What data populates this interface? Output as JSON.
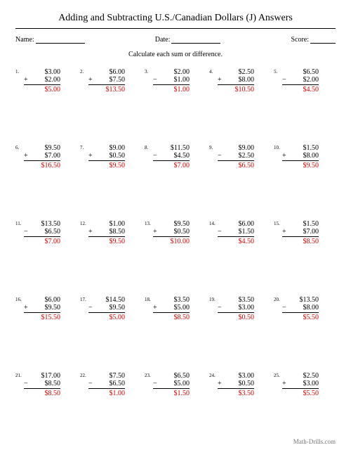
{
  "title": "Adding and Subtracting U.S./Canadian Dollars (J) Answers",
  "labels": {
    "name": "Name:",
    "date": "Date:",
    "score": "Score:"
  },
  "instruction": "Calculate each sum or difference.",
  "footer": "Math-Drills.com",
  "colors": {
    "answer": "#d00000",
    "text": "#000000"
  },
  "problems": [
    {
      "n": "1.",
      "a": "$3.00",
      "op": "+",
      "b": "$2.00",
      "ans": "$5.00"
    },
    {
      "n": "2.",
      "a": "$6.00",
      "op": "+",
      "b": "$7.50",
      "ans": "$13.50"
    },
    {
      "n": "3.",
      "a": "$2.00",
      "op": "−",
      "b": "$1.00",
      "ans": "$1.00"
    },
    {
      "n": "4.",
      "a": "$2.50",
      "op": "+",
      "b": "$8.00",
      "ans": "$10.50"
    },
    {
      "n": "5.",
      "a": "$6.50",
      "op": "−",
      "b": "$2.00",
      "ans": "$4.50"
    },
    {
      "n": "6.",
      "a": "$9.50",
      "op": "+",
      "b": "$7.00",
      "ans": "$16.50"
    },
    {
      "n": "7.",
      "a": "$9.00",
      "op": "+",
      "b": "$0.50",
      "ans": "$9.50"
    },
    {
      "n": "8.",
      "a": "$11.50",
      "op": "−",
      "b": "$4.50",
      "ans": "$7.00"
    },
    {
      "n": "9.",
      "a": "$9.00",
      "op": "−",
      "b": "$2.50",
      "ans": "$6.50"
    },
    {
      "n": "10.",
      "a": "$1.50",
      "op": "+",
      "b": "$8.00",
      "ans": "$9.50"
    },
    {
      "n": "11.",
      "a": "$13.50",
      "op": "−",
      "b": "$6.50",
      "ans": "$7.00"
    },
    {
      "n": "12.",
      "a": "$1.00",
      "op": "+",
      "b": "$8.50",
      "ans": "$9.50"
    },
    {
      "n": "13.",
      "a": "$9.50",
      "op": "+",
      "b": "$0.50",
      "ans": "$10.00"
    },
    {
      "n": "14.",
      "a": "$6.00",
      "op": "−",
      "b": "$1.50",
      "ans": "$4.50"
    },
    {
      "n": "15.",
      "a": "$1.50",
      "op": "+",
      "b": "$7.00",
      "ans": "$8.50"
    },
    {
      "n": "16.",
      "a": "$6.00",
      "op": "+",
      "b": "$9.50",
      "ans": "$15.50"
    },
    {
      "n": "17.",
      "a": "$14.50",
      "op": "−",
      "b": "$9.50",
      "ans": "$5.00"
    },
    {
      "n": "18.",
      "a": "$3.50",
      "op": "+",
      "b": "$5.00",
      "ans": "$8.50"
    },
    {
      "n": "19.",
      "a": "$3.50",
      "op": "−",
      "b": "$3.00",
      "ans": "$0.50"
    },
    {
      "n": "20.",
      "a": "$13.50",
      "op": "−",
      "b": "$8.00",
      "ans": "$5.50"
    },
    {
      "n": "21.",
      "a": "$17.00",
      "op": "−",
      "b": "$8.50",
      "ans": "$8.50"
    },
    {
      "n": "22.",
      "a": "$7.50",
      "op": "−",
      "b": "$6.50",
      "ans": "$1.00"
    },
    {
      "n": "23.",
      "a": "$6.50",
      "op": "−",
      "b": "$5.00",
      "ans": "$1.50"
    },
    {
      "n": "24.",
      "a": "$3.00",
      "op": "+",
      "b": "$0.50",
      "ans": "$3.50"
    },
    {
      "n": "25.",
      "a": "$2.50",
      "op": "+",
      "b": "$3.00",
      "ans": "$5.50"
    }
  ]
}
